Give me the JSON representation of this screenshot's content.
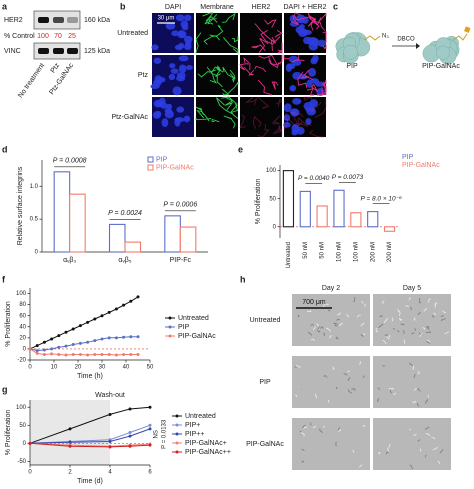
{
  "panels": {
    "a": {
      "label": "a",
      "rows": [
        "HER2",
        "% Control",
        "VINC"
      ],
      "control_values": [
        100,
        70,
        25
      ],
      "sizes": [
        "160 kDa",
        "125 kDa"
      ],
      "lanes": [
        "No treatment",
        "Ptz",
        "Ptz-GalNAc"
      ]
    },
    "b": {
      "label": "b",
      "columns": [
        "DAPI",
        "Membrane",
        "HER2",
        "DAPI + HER2"
      ],
      "rows": [
        "Untreated",
        "Ptz",
        "Ptz-GalNAc"
      ],
      "scale": "30 μm"
    },
    "c": {
      "label": "c",
      "left": "PIP",
      "group": "N₃",
      "reagent": "DBCO",
      "right": "PIP-GalNAc"
    },
    "h": {
      "label": "h",
      "columns": [
        "Day 2",
        "Day 5"
      ],
      "rows": [
        "Untreated",
        "PIP",
        "PIP-GalNAc"
      ],
      "scale": "700 μm"
    }
  },
  "chart_data": [
    {
      "type": "bar",
      "label": "d",
      "y_label": "Relative surface integrins",
      "categories": [
        "αᵥβ₃",
        "αᵥβ₅",
        "PIP-Fc"
      ],
      "series": [
        {
          "name": "PIP",
          "color": "#5b6fc9",
          "values": [
            1.22,
            0.42,
            0.55
          ]
        },
        {
          "name": "PIP-GalNAc",
          "color": "#f07b6b",
          "values": [
            0.88,
            0.15,
            0.38
          ]
        }
      ],
      "annotations": [
        "P = 0.0008",
        "P = 0.0024",
        "P = 0.0006"
      ],
      "ylim": [
        0,
        1.4
      ],
      "yticks": [
        0,
        0.5,
        {
          "value": 1,
          "label": "1.0"
        }
      ]
    },
    {
      "type": "bar",
      "label": "e",
      "y_label": "% Proliferation",
      "categories": [
        "Untreated",
        "50 nM",
        "50 nM",
        "100 nM",
        "100 nM",
        "200 nM",
        "200 nM"
      ],
      "values": [
        100,
        63,
        37,
        65,
        25,
        27,
        -8
      ],
      "colors": [
        "#222222",
        "#5b6fc9",
        "#f07b6b",
        "#5b6fc9",
        "#f07b6b",
        "#5b6fc9",
        "#f07b6b"
      ],
      "legend": [
        {
          "name": "PIP",
          "color": "#5b6fc9"
        },
        {
          "name": "PIP-GalNAc",
          "color": "#f07b6b"
        }
      ],
      "annotations": [
        "P = 0.0040",
        "P = 0.0073",
        "P = 8.0 × 10⁻⁶"
      ],
      "ylim": [
        -20,
        110
      ],
      "yticks": [
        0,
        50,
        100
      ]
    },
    {
      "type": "line",
      "label": "f",
      "x_label": "Time (h)",
      "y_label": "% Proliferation",
      "x": [
        0,
        3,
        6,
        9,
        12,
        15,
        18,
        21,
        24,
        27,
        30,
        33,
        36,
        39,
        42,
        45
      ],
      "series": [
        {
          "name": "Untreated",
          "color": "#111111",
          "values": [
            0,
            6,
            12,
            18,
            24,
            30,
            36,
            42,
            48,
            54,
            60,
            66,
            72,
            79,
            86,
            94
          ]
        },
        {
          "name": "PIP",
          "color": "#5b6fc9",
          "values": [
            0,
            -3,
            -2,
            0,
            3,
            5,
            8,
            10,
            12,
            15,
            18,
            20,
            20,
            21,
            22,
            22
          ]
        },
        {
          "name": "PIP-GalNAc",
          "color": "#f07b6b",
          "values": [
            0,
            -8,
            -10,
            -9,
            -10,
            -11,
            -10,
            -10,
            -11,
            -10,
            -10,
            -10,
            -11,
            -10,
            -10,
            -10
          ]
        }
      ],
      "xlim": [
        0,
        50
      ],
      "xticks": [
        0,
        10,
        20,
        30,
        40,
        50
      ],
      "ylim": [
        -20,
        110
      ],
      "yticks": [
        -20,
        0,
        20,
        40,
        60,
        80,
        100
      ]
    },
    {
      "type": "line",
      "label": "g",
      "x_label": "Time (d)",
      "y_label": "% Proliferation",
      "shade_label": "Wash-out",
      "shade_x": [
        0,
        4
      ],
      "x": [
        0,
        2,
        4,
        5,
        6
      ],
      "series": [
        {
          "name": "Untreated",
          "color": "#111111",
          "values": [
            0,
            40,
            80,
            95,
            100
          ]
        },
        {
          "name": "PIP+",
          "color": "#7b8ad6",
          "values": [
            0,
            5,
            10,
            30,
            50
          ]
        },
        {
          "name": "PIP++",
          "color": "#3047b0",
          "values": [
            0,
            3,
            5,
            20,
            40
          ]
        },
        {
          "name": "PIP-GalNAc+",
          "color": "#f08070",
          "values": [
            0,
            -5,
            -8,
            -5,
            -2
          ]
        },
        {
          "name": "PIP-GalNAc++",
          "color": "#d02020",
          "values": [
            0,
            -8,
            -10,
            -8,
            -5
          ]
        }
      ],
      "annotations": [
        "NS",
        "P = 0.0133"
      ],
      "xlim": [
        0,
        6
      ],
      "xticks": [
        0,
        2,
        4,
        6
      ],
      "ylim": [
        -60,
        120
      ],
      "yticks": [
        -50,
        0,
        50,
        100
      ]
    }
  ]
}
